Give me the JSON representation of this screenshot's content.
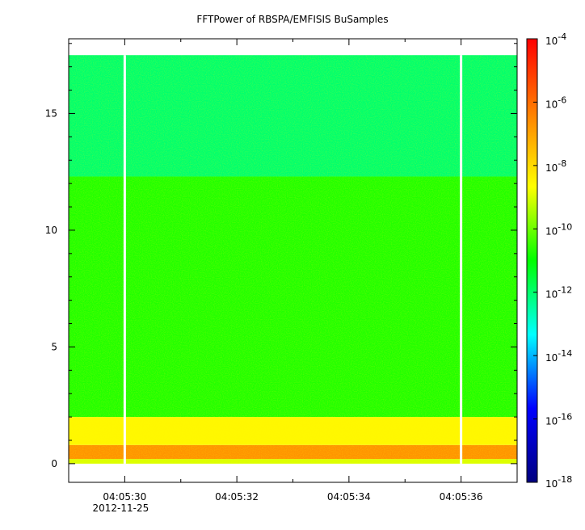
{
  "chart_data": {
    "type": "heatmap",
    "title": "FFTPower of RBSPA/EMFISIS  BuSamples",
    "xlabel": "",
    "ylabel": "",
    "x_range": [
      "04:05:29.0",
      "04:05:37.0"
    ],
    "x_ticks": [
      "04:05:30",
      "04:05:32",
      "04:05:34",
      "04:05:36"
    ],
    "x_date_label": "2012-11-25",
    "ylim": [
      -0.8,
      18.2
    ],
    "y_ticks": [
      "0",
      "5",
      "10",
      "15"
    ],
    "data_y_max": 17.5,
    "data_gaps": [
      "04:05:30.0",
      "04:05:36.0"
    ],
    "bands": [
      {
        "y_from": 0.0,
        "y_to": 0.2,
        "level": 1e-09
      },
      {
        "y_from": 0.2,
        "y_to": 0.8,
        "level": 2e-07
      },
      {
        "y_from": 0.8,
        "y_to": 2.0,
        "level": 3e-09
      },
      {
        "y_from": 2.0,
        "y_to": 12.3,
        "level": 2e-11
      },
      {
        "y_from": 12.3,
        "y_to": 17.5,
        "level": 1e-12
      }
    ],
    "colorbar": {
      "scale": "log",
      "range": [
        1e-18,
        0.0001
      ],
      "ticks": [
        {
          "base": "10",
          "exp": "-4"
        },
        {
          "base": "10",
          "exp": "-6"
        },
        {
          "base": "10",
          "exp": "-8"
        },
        {
          "base": "10",
          "exp": "-10"
        },
        {
          "base": "10",
          "exp": "-12"
        },
        {
          "base": "10",
          "exp": "-14"
        },
        {
          "base": "10",
          "exp": "-16"
        },
        {
          "base": "10",
          "exp": "-18"
        }
      ],
      "colors": [
        "#00007f",
        "#0000ff",
        "#00ffff",
        "#00ff00",
        "#ffff00",
        "#ff7f00",
        "#ff0000"
      ]
    }
  }
}
